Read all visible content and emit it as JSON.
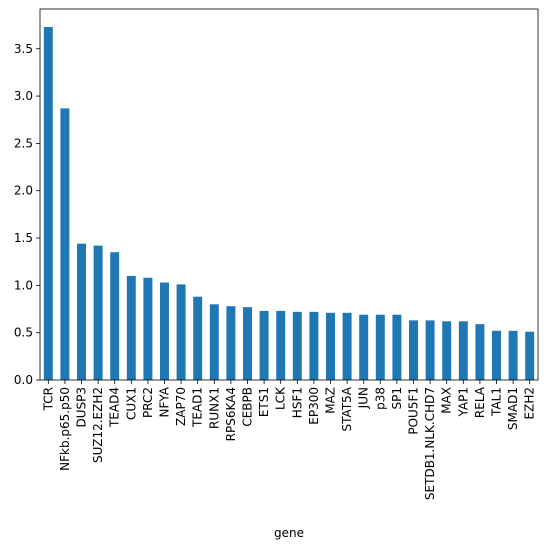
{
  "chart_data": {
    "type": "bar",
    "xlabel": "gene",
    "categories": [
      "TCR",
      "NFkb.p65.p50",
      "DUSP3",
      "SUZ12.EZH2",
      "TEAD4",
      "CUX1",
      "PRC2",
      "NFYA",
      "ZAP70",
      "TEAD1",
      "RUNX1",
      "RPS6KA4",
      "CEBPB",
      "ETS1",
      "LCK",
      "HSF1",
      "EP300",
      "MAZ",
      "STAT5A",
      "JUN",
      "p38",
      "SP1",
      "POU5F1",
      "SETDB1.NLK.CHD7",
      "MAX",
      "YAP1",
      "RELA",
      "TAL1",
      "SMAD1",
      "EZH2"
    ],
    "values": [
      3.73,
      2.87,
      1.44,
      1.42,
      1.35,
      1.1,
      1.08,
      1.03,
      1.01,
      0.88,
      0.8,
      0.78,
      0.77,
      0.73,
      0.73,
      0.72,
      0.72,
      0.71,
      0.71,
      0.69,
      0.69,
      0.69,
      0.63,
      0.63,
      0.62,
      0.62,
      0.59,
      0.52,
      0.52,
      0.51
    ],
    "color": "#1f77b4",
    "ylim": [
      0,
      3.92
    ],
    "yticks": [
      {
        "value": 0,
        "label": "0.0"
      },
      0.5,
      {
        "value": 1,
        "label": "1.0"
      },
      1.5,
      {
        "value": 2,
        "label": "2.0"
      },
      2.5,
      {
        "value": 3,
        "label": "3.0"
      },
      3.5
    ],
    "grid": false
  }
}
